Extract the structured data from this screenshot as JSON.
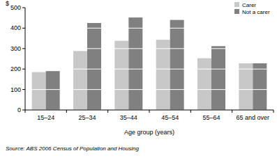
{
  "chart_data": {
    "type": "bar",
    "y_label": "$",
    "x_label": "Age group (years)",
    "annotations": [
      "Source: ABS 2006 Census of Population and Housing"
    ],
    "categories": [
      "15–24",
      "25–34",
      "35–44",
      "45–54",
      "55–64",
      "65 and over"
    ],
    "series": [
      {
        "name": "Carer",
        "color": "#c8c8c8",
        "values": [
          185,
          288,
          338,
          343,
          253,
          228
        ]
      },
      {
        "name": "Not a carer",
        "color": "#808080",
        "values": [
          190,
          425,
          452,
          440,
          312,
          228
        ]
      }
    ],
    "ylim": [
      0,
      500
    ],
    "yticks": [
      0,
      100,
      200,
      300,
      400,
      500
    ],
    "grid": true,
    "legend": "top-right"
  }
}
